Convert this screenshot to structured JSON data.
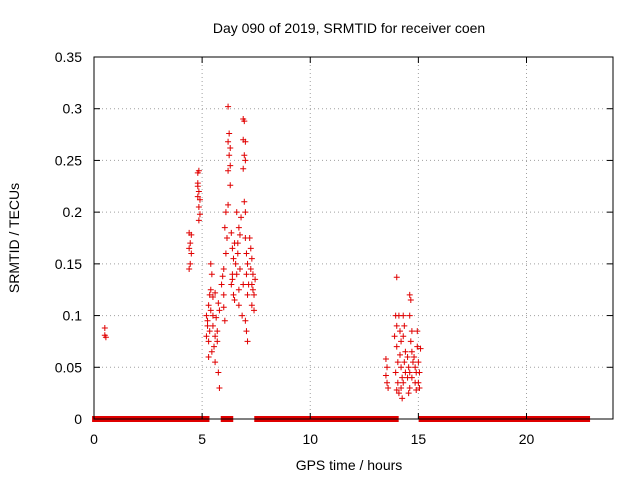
{
  "chart_data": {
    "type": "scatter",
    "title": "Day 090 of 2019, SRMTID for receiver coen",
    "xlabel": "GPS time / hours",
    "ylabel": "SRMTID / TECUs",
    "xlim": [
      0,
      24
    ],
    "ylim": [
      0,
      0.35
    ],
    "grid": true,
    "marker": "+",
    "color": "#e00000",
    "x_ticks": [
      {
        "value": 0,
        "label": "0"
      },
      {
        "value": 5,
        "label": "5"
      },
      {
        "value": 10,
        "label": "10"
      },
      {
        "value": 15,
        "label": "15"
      },
      {
        "value": 20,
        "label": "20"
      }
    ],
    "y_ticks": [
      {
        "value": 0,
        "label": "0"
      },
      {
        "value": 0.05,
        "label": "0.05"
      },
      {
        "value": 0.1,
        "label": "0.1"
      },
      {
        "value": 0.15,
        "label": "0.15"
      },
      {
        "value": 0.2,
        "label": "0.2"
      },
      {
        "value": 0.25,
        "label": "0.25"
      },
      {
        "value": 0.3,
        "label": "0.3"
      },
      {
        "value": 0.35,
        "label": "0.35"
      }
    ],
    "zero_baseline_segments": [
      [
        0.05,
        4.4
      ],
      [
        4.55,
        4.85
      ],
      [
        4.95,
        5.2
      ],
      [
        6.0,
        6.3
      ],
      [
        7.55,
        13.5
      ],
      [
        13.65,
        13.8
      ],
      [
        13.85,
        13.95
      ],
      [
        15.15,
        22.8
      ]
    ],
    "points": [
      {
        "x": 0.5,
        "y": 0.088
      },
      {
        "x": 0.5,
        "y": 0.081
      },
      {
        "x": 0.55,
        "y": 0.079
      },
      {
        "x": 4.4,
        "y": 0.18
      },
      {
        "x": 4.45,
        "y": 0.17
      },
      {
        "x": 4.4,
        "y": 0.165
      },
      {
        "x": 4.5,
        "y": 0.16
      },
      {
        "x": 4.45,
        "y": 0.15
      },
      {
        "x": 4.4,
        "y": 0.145
      },
      {
        "x": 4.5,
        "y": 0.178
      },
      {
        "x": 4.8,
        "y": 0.238
      },
      {
        "x": 4.85,
        "y": 0.24
      },
      {
        "x": 4.8,
        "y": 0.225
      },
      {
        "x": 4.85,
        "y": 0.22
      },
      {
        "x": 4.8,
        "y": 0.215
      },
      {
        "x": 4.9,
        "y": 0.212
      },
      {
        "x": 4.85,
        "y": 0.205
      },
      {
        "x": 4.9,
        "y": 0.198
      },
      {
        "x": 4.85,
        "y": 0.192
      },
      {
        "x": 4.8,
        "y": 0.228
      },
      {
        "x": 5.2,
        "y": 0.08
      },
      {
        "x": 5.25,
        "y": 0.09
      },
      {
        "x": 5.2,
        "y": 0.1
      },
      {
        "x": 5.3,
        "y": 0.11
      },
      {
        "x": 5.25,
        "y": 0.095
      },
      {
        "x": 5.3,
        "y": 0.075
      },
      {
        "x": 5.35,
        "y": 0.085
      },
      {
        "x": 5.3,
        "y": 0.06
      },
      {
        "x": 5.35,
        "y": 0.12
      },
      {
        "x": 5.4,
        "y": 0.105
      },
      {
        "x": 5.4,
        "y": 0.15
      },
      {
        "x": 5.45,
        "y": 0.14
      },
      {
        "x": 5.4,
        "y": 0.125
      },
      {
        "x": 5.5,
        "y": 0.118
      },
      {
        "x": 5.45,
        "y": 0.065
      },
      {
        "x": 5.5,
        "y": 0.09
      },
      {
        "x": 5.55,
        "y": 0.07
      },
      {
        "x": 5.5,
        "y": 0.1
      },
      {
        "x": 5.6,
        "y": 0.08
      },
      {
        "x": 5.6,
        "y": 0.122
      },
      {
        "x": 5.65,
        "y": 0.098
      },
      {
        "x": 5.7,
        "y": 0.085
      },
      {
        "x": 5.6,
        "y": 0.055
      },
      {
        "x": 5.75,
        "y": 0.045
      },
      {
        "x": 5.8,
        "y": 0.03
      },
      {
        "x": 5.7,
        "y": 0.075
      },
      {
        "x": 5.8,
        "y": 0.105
      },
      {
        "x": 5.75,
        "y": 0.112
      },
      {
        "x": 5.9,
        "y": 0.13
      },
      {
        "x": 5.95,
        "y": 0.138
      },
      {
        "x": 6.0,
        "y": 0.12
      },
      {
        "x": 6.05,
        "y": 0.095
      },
      {
        "x": 6.0,
        "y": 0.145
      },
      {
        "x": 6.1,
        "y": 0.16
      },
      {
        "x": 6.15,
        "y": 0.175
      },
      {
        "x": 6.1,
        "y": 0.2
      },
      {
        "x": 6.05,
        "y": 0.185
      },
      {
        "x": 6.0,
        "y": 0.108
      },
      {
        "x": 6.2,
        "y": 0.302
      },
      {
        "x": 6.25,
        "y": 0.276
      },
      {
        "x": 6.2,
        "y": 0.268
      },
      {
        "x": 6.3,
        "y": 0.262
      },
      {
        "x": 6.25,
        "y": 0.255
      },
      {
        "x": 6.3,
        "y": 0.245
      },
      {
        "x": 6.2,
        "y": 0.24
      },
      {
        "x": 6.3,
        "y": 0.226
      },
      {
        "x": 6.2,
        "y": 0.207
      },
      {
        "x": 6.35,
        "y": 0.18
      },
      {
        "x": 6.4,
        "y": 0.165
      },
      {
        "x": 6.45,
        "y": 0.155
      },
      {
        "x": 6.4,
        "y": 0.14
      },
      {
        "x": 6.45,
        "y": 0.12
      },
      {
        "x": 6.5,
        "y": 0.115
      },
      {
        "x": 6.35,
        "y": 0.13
      },
      {
        "x": 6.5,
        "y": 0.17
      },
      {
        "x": 6.55,
        "y": 0.15
      },
      {
        "x": 6.4,
        "y": 0.135
      },
      {
        "x": 6.6,
        "y": 0.14
      },
      {
        "x": 6.65,
        "y": 0.17
      },
      {
        "x": 6.6,
        "y": 0.2
      },
      {
        "x": 6.7,
        "y": 0.185
      },
      {
        "x": 6.65,
        "y": 0.16
      },
      {
        "x": 6.75,
        "y": 0.145
      },
      {
        "x": 6.7,
        "y": 0.125
      },
      {
        "x": 6.8,
        "y": 0.195
      },
      {
        "x": 6.75,
        "y": 0.178
      },
      {
        "x": 6.7,
        "y": 0.11
      },
      {
        "x": 6.9,
        "y": 0.29
      },
      {
        "x": 6.95,
        "y": 0.288
      },
      {
        "x": 6.9,
        "y": 0.27
      },
      {
        "x": 7.0,
        "y": 0.268
      },
      {
        "x": 6.95,
        "y": 0.255
      },
      {
        "x": 7.0,
        "y": 0.25
      },
      {
        "x": 6.9,
        "y": 0.242
      },
      {
        "x": 6.95,
        "y": 0.21
      },
      {
        "x": 7.0,
        "y": 0.2
      },
      {
        "x": 6.9,
        "y": 0.13
      },
      {
        "x": 6.85,
        "y": 0.1
      },
      {
        "x": 7.0,
        "y": 0.175
      },
      {
        "x": 7.05,
        "y": 0.16
      },
      {
        "x": 7.1,
        "y": 0.15
      },
      {
        "x": 7.05,
        "y": 0.14
      },
      {
        "x": 7.15,
        "y": 0.13
      },
      {
        "x": 7.1,
        "y": 0.12
      },
      {
        "x": 7.05,
        "y": 0.085
      },
      {
        "x": 7.1,
        "y": 0.075
      },
      {
        "x": 7.0,
        "y": 0.095
      },
      {
        "x": 7.2,
        "y": 0.175
      },
      {
        "x": 7.25,
        "y": 0.165
      },
      {
        "x": 7.3,
        "y": 0.155
      },
      {
        "x": 7.25,
        "y": 0.145
      },
      {
        "x": 7.35,
        "y": 0.14
      },
      {
        "x": 7.3,
        "y": 0.13
      },
      {
        "x": 7.35,
        "y": 0.125
      },
      {
        "x": 7.4,
        "y": 0.12
      },
      {
        "x": 7.3,
        "y": 0.11
      },
      {
        "x": 7.4,
        "y": 0.105
      },
      {
        "x": 7.45,
        "y": 0.135
      },
      {
        "x": 13.5,
        "y": 0.058
      },
      {
        "x": 13.55,
        "y": 0.05
      },
      {
        "x": 13.5,
        "y": 0.042
      },
      {
        "x": 13.55,
        "y": 0.035
      },
      {
        "x": 13.6,
        "y": 0.03
      },
      {
        "x": 14.0,
        "y": 0.137
      },
      {
        "x": 13.95,
        "y": 0.1
      },
      {
        "x": 14.0,
        "y": 0.09
      },
      {
        "x": 13.9,
        "y": 0.08
      },
      {
        "x": 14.0,
        "y": 0.07
      },
      {
        "x": 14.05,
        "y": 0.055
      },
      {
        "x": 13.95,
        "y": 0.045
      },
      {
        "x": 14.05,
        "y": 0.035
      },
      {
        "x": 14.0,
        "y": 0.028
      },
      {
        "x": 14.1,
        "y": 0.1
      },
      {
        "x": 14.15,
        "y": 0.085
      },
      {
        "x": 14.2,
        "y": 0.075
      },
      {
        "x": 14.15,
        "y": 0.062
      },
      {
        "x": 14.2,
        "y": 0.05
      },
      {
        "x": 14.25,
        "y": 0.04
      },
      {
        "x": 14.1,
        "y": 0.025
      },
      {
        "x": 14.2,
        "y": 0.03
      },
      {
        "x": 14.25,
        "y": 0.02
      },
      {
        "x": 14.3,
        "y": 0.1
      },
      {
        "x": 14.35,
        "y": 0.09
      },
      {
        "x": 14.3,
        "y": 0.08
      },
      {
        "x": 14.4,
        "y": 0.065
      },
      {
        "x": 14.35,
        "y": 0.055
      },
      {
        "x": 14.4,
        "y": 0.045
      },
      {
        "x": 14.3,
        "y": 0.035
      },
      {
        "x": 14.5,
        "y": 0.06
      },
      {
        "x": 14.55,
        "y": 0.05
      },
      {
        "x": 14.5,
        "y": 0.04
      },
      {
        "x": 14.6,
        "y": 0.03
      },
      {
        "x": 14.55,
        "y": 0.025
      },
      {
        "x": 14.6,
        "y": 0.12
      },
      {
        "x": 14.65,
        "y": 0.115
      },
      {
        "x": 14.6,
        "y": 0.1
      },
      {
        "x": 14.7,
        "y": 0.085
      },
      {
        "x": 14.65,
        "y": 0.075
      },
      {
        "x": 14.7,
        "y": 0.065
      },
      {
        "x": 14.75,
        "y": 0.055
      },
      {
        "x": 14.6,
        "y": 0.045
      },
      {
        "x": 14.7,
        "y": 0.04
      },
      {
        "x": 14.8,
        "y": 0.06
      },
      {
        "x": 14.85,
        "y": 0.05
      },
      {
        "x": 14.9,
        "y": 0.045
      },
      {
        "x": 14.85,
        "y": 0.035
      },
      {
        "x": 14.9,
        "y": 0.028
      },
      {
        "x": 14.95,
        "y": 0.07
      },
      {
        "x": 15.0,
        "y": 0.055
      },
      {
        "x": 15.05,
        "y": 0.045
      },
      {
        "x": 15.0,
        "y": 0.035
      },
      {
        "x": 15.05,
        "y": 0.03
      },
      {
        "x": 14.95,
        "y": 0.085
      },
      {
        "x": 15.1,
        "y": 0.068
      }
    ]
  }
}
